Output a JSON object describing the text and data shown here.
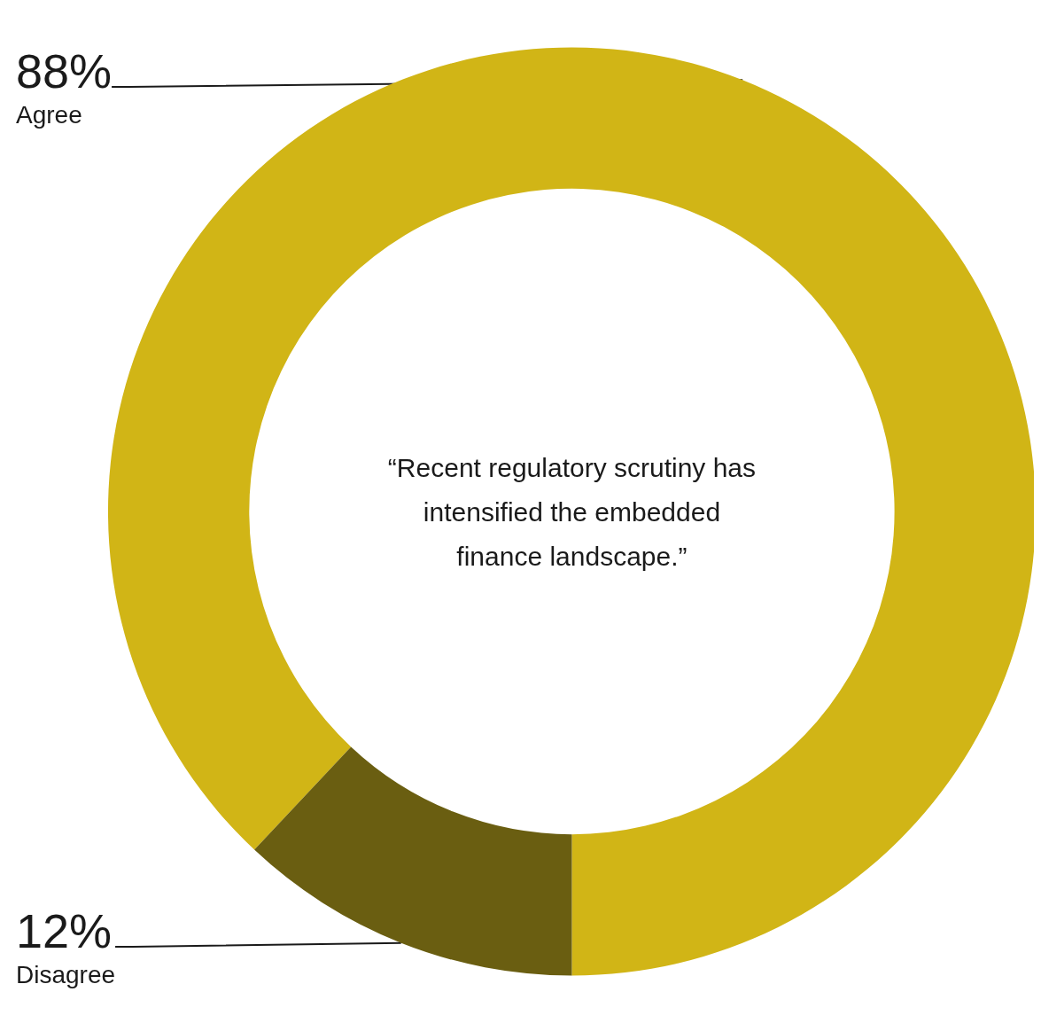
{
  "chart_data": {
    "type": "donut",
    "categories": [
      "Agree",
      "Disagree"
    ],
    "values": [
      88,
      12
    ],
    "colors": [
      "#d1b516",
      "#6a5e11"
    ],
    "value_labels": [
      "88%",
      "12%"
    ],
    "annotations": [
      "“Recent regulatory scrutiny has intensified the embedded finance landscape.”"
    ]
  }
}
